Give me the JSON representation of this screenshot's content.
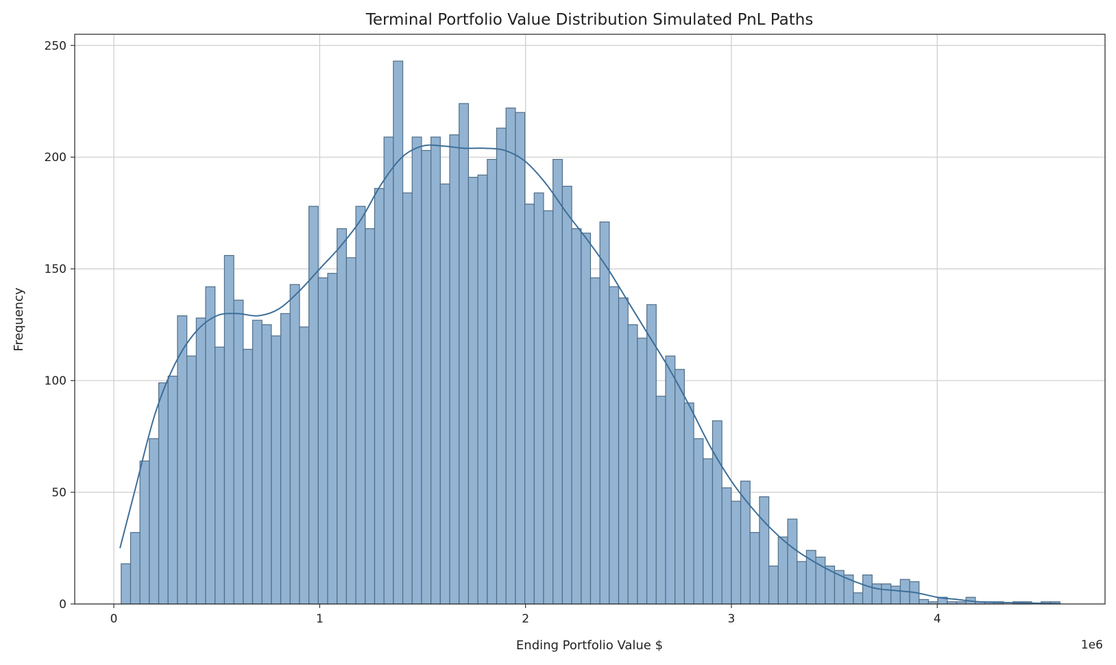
{
  "chart_data": {
    "type": "bar",
    "subtype": "histogram_with_kde",
    "title": "Terminal Portfolio Value Distribution Simulated PnL Paths",
    "xlabel": "Ending Portfolio Value $",
    "ylabel": "Frequency",
    "x_offset_label": "1e6",
    "xlim": [
      -0.19,
      4.815
    ],
    "ylim": [
      0,
      255
    ],
    "x_ticks": [
      0,
      1,
      2,
      3,
      4
    ],
    "x_tick_labels": [
      "0",
      "1",
      "2",
      "3",
      "4"
    ],
    "y_ticks": [
      0,
      50,
      100,
      150,
      200,
      250
    ],
    "y_tick_labels": [
      "0",
      "50",
      "100",
      "150",
      "200",
      "250"
    ],
    "grid": true,
    "bin_start": 0.0356,
    "bin_width": 0.0456,
    "values": [
      18,
      32,
      64,
      74,
      99,
      102,
      129,
      111,
      128,
      142,
      115,
      156,
      136,
      114,
      127,
      125,
      120,
      130,
      143,
      124,
      178,
      146,
      148,
      168,
      155,
      178,
      168,
      186,
      209,
      243,
      184,
      209,
      203,
      209,
      188,
      210,
      224,
      191,
      192,
      199,
      213,
      222,
      220,
      179,
      184,
      176,
      199,
      187,
      168,
      166,
      146,
      171,
      142,
      137,
      125,
      119,
      134,
      93,
      111,
      105,
      90,
      74,
      65,
      82,
      52,
      46,
      55,
      32,
      48,
      17,
      30,
      38,
      19,
      24,
      21,
      17,
      15,
      13,
      5,
      13,
      9,
      9,
      8,
      11,
      10,
      2,
      1,
      3,
      1,
      1,
      3,
      1,
      1,
      1,
      0,
      1,
      1,
      0,
      1,
      1
    ],
    "kde": {
      "x": [
        0.03,
        0.1,
        0.2,
        0.3,
        0.4,
        0.5,
        0.6,
        0.7,
        0.8,
        0.9,
        1.0,
        1.1,
        1.2,
        1.3,
        1.4,
        1.5,
        1.6,
        1.7,
        1.8,
        1.9,
        2.0,
        2.1,
        2.2,
        2.3,
        2.4,
        2.5,
        2.6,
        2.7,
        2.8,
        2.9,
        3.0,
        3.1,
        3.2,
        3.3,
        3.4,
        3.5,
        3.6,
        3.7,
        3.8,
        3.9,
        4.0,
        4.1,
        4.2,
        4.4,
        4.6
      ],
      "y": [
        25,
        50,
        85,
        108,
        122,
        129,
        130,
        129,
        132,
        140,
        150,
        160,
        172,
        188,
        200,
        205,
        205,
        204,
        204,
        203,
        198,
        188,
        175,
        163,
        150,
        135,
        120,
        105,
        88,
        70,
        55,
        43,
        33,
        25,
        19,
        14,
        10,
        7,
        6,
        5,
        3,
        2,
        1,
        0.5,
        0.2
      ]
    },
    "colors": {
      "bar_fill": "#93b3d2",
      "bar_edge": "#4f6d86",
      "kde_line": "#3d6f98"
    }
  }
}
